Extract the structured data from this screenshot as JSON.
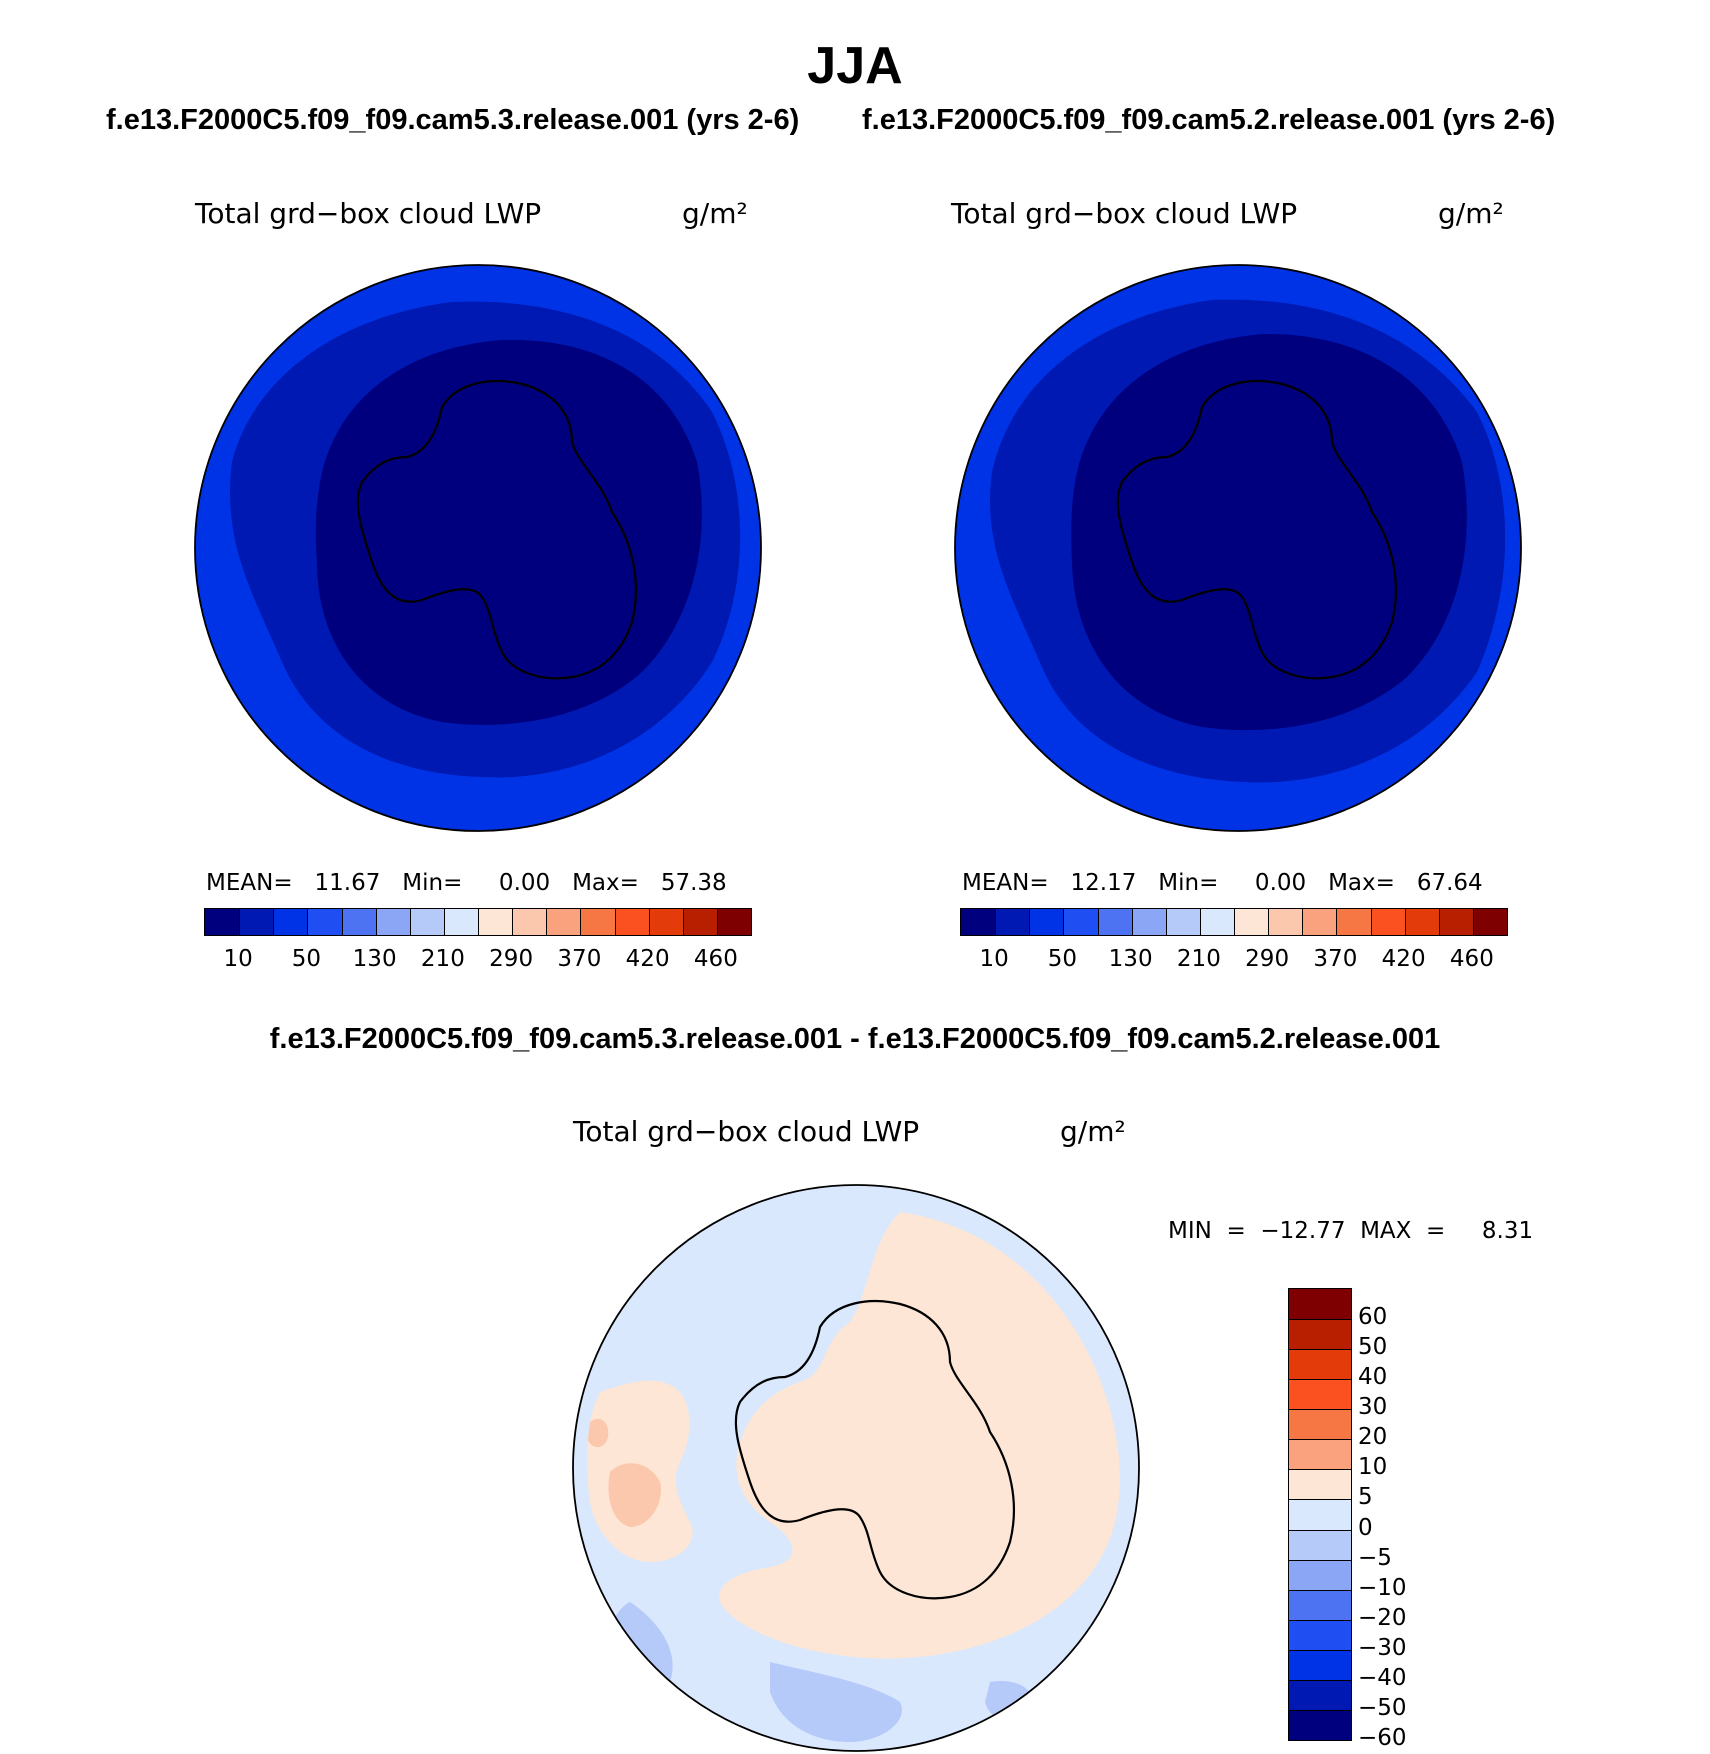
{
  "header": {
    "title": "JJA",
    "case1": "f.e13.F2000C5.f09_f09.cam5.3.release.001 (yrs 2-6)",
    "case2": "f.e13.F2000C5.f09_f09.cam5.2.release.001 (yrs 2-6)",
    "diff": "f.e13.F2000C5.f09_f09.cam5.3.release.001 - f.e13.F2000C5.f09_f09.cam5.2.release.001"
  },
  "panels": {
    "left": {
      "varname": "Total grd−box cloud LWP",
      "units": "g/m²",
      "stats": "MEAN=   11.67   Min=     0.00   Max=   57.38"
    },
    "right": {
      "varname": "Total grd−box cloud LWP",
      "units": "g/m²",
      "stats": "MEAN=   12.17   Min=     0.00   Max=   67.64"
    },
    "diff": {
      "varname": "Total grd−box cloud LWP",
      "units": "g/m²",
      "stats": "MIN  =  −12.77  MAX  =     8.31"
    }
  },
  "colorbar_abs": {
    "colors": [
      "#00007f",
      "#0019b2",
      "#0033e5",
      "#1f4ff2",
      "#4d72f2",
      "#8aa6f5",
      "#b6cafa",
      "#d9e8fc",
      "#fde6d5",
      "#fbc7ad",
      "#f9a27d",
      "#f77744",
      "#fb501f",
      "#e33b0a",
      "#b81e00",
      "#7f0000"
    ],
    "ticks": [
      "10",
      "50",
      "130",
      "210",
      "290",
      "370",
      "420",
      "460"
    ]
  },
  "colorbar_diff": {
    "colors": [
      "#7f0000",
      "#b81e00",
      "#e33b0a",
      "#fb501f",
      "#f77744",
      "#f9a27d",
      "#fde6d5",
      "#d9e8fc",
      "#b6cafa",
      "#8aa6f5",
      "#4d72f2",
      "#1f4ff2",
      "#0033e5",
      "#0019b2",
      "#00007f"
    ],
    "ticks": [
      "60",
      "50",
      "40",
      "30",
      "20",
      "10",
      "5",
      "0",
      "−5",
      "−10",
      "−20",
      "−30",
      "−40",
      "−50",
      "−60"
    ]
  },
  "chart_data": [
    {
      "type": "heatmap",
      "projection": "south polar stereographic",
      "title": "Total grd−box cloud LWP",
      "units": "g/m²",
      "case": "f.e13.F2000C5.f09_f09.cam5.3.release.001 (yrs 2-6)",
      "season": "JJA",
      "mean": 11.67,
      "min": 0.0,
      "max": 57.38,
      "contour_levels": [
        10,
        50,
        130,
        210,
        290,
        370,
        420,
        460
      ]
    },
    {
      "type": "heatmap",
      "projection": "south polar stereographic",
      "title": "Total grd−box cloud LWP",
      "units": "g/m²",
      "case": "f.e13.F2000C5.f09_f09.cam5.2.release.001 (yrs 2-6)",
      "season": "JJA",
      "mean": 12.17,
      "min": 0.0,
      "max": 67.64,
      "contour_levels": [
        10,
        50,
        130,
        210,
        290,
        370,
        420,
        460
      ]
    },
    {
      "type": "heatmap",
      "projection": "south polar stereographic",
      "title": "Total grd−box cloud LWP",
      "units": "g/m²",
      "case": "f.e13.F2000C5.f09_f09.cam5.3.release.001 - f.e13.F2000C5.f09_f09.cam5.2.release.001",
      "season": "JJA",
      "min": -12.77,
      "max": 8.31,
      "contour_levels": [
        60,
        50,
        40,
        30,
        20,
        10,
        5,
        0,
        -5,
        -10,
        -20,
        -30,
        -40,
        -50,
        -60
      ]
    }
  ]
}
